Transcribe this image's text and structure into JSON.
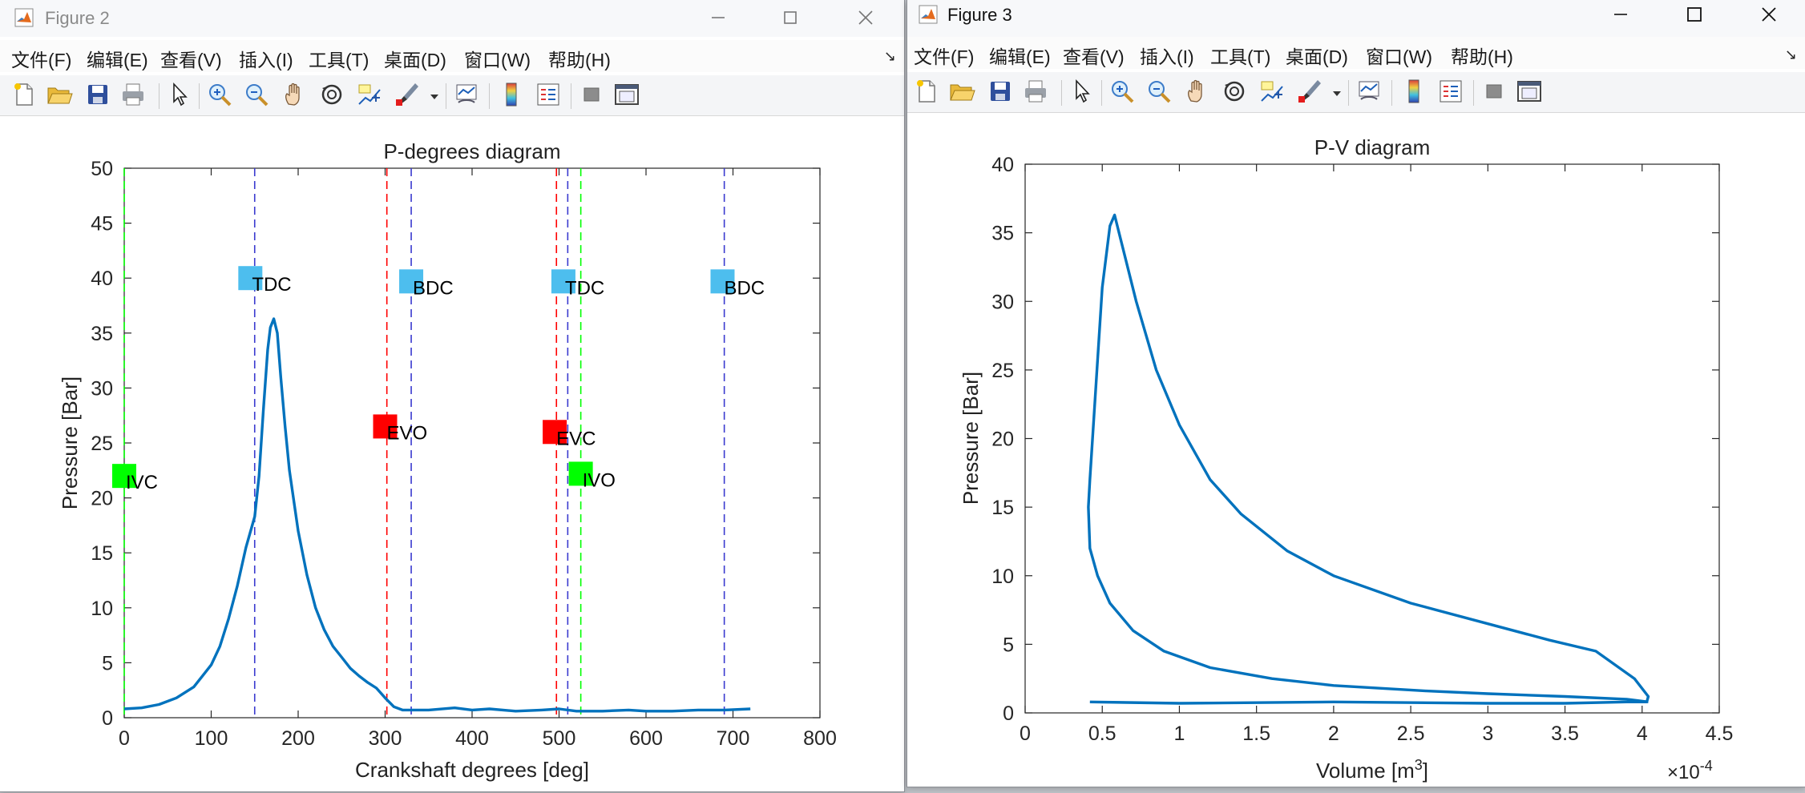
{
  "menu_labels": [
    "文件(F)",
    "编辑(E)",
    "查看(V)",
    "插入(I)",
    "工具(T)",
    "桌面(D)",
    "窗口(W)",
    "帮助(H)"
  ],
  "toolbar_icons": [
    "new-figure-icon",
    "open-file-icon",
    "save-icon",
    "print-icon",
    "pointer-icon",
    "zoom-in-icon",
    "zoom-out-icon",
    "pan-hand-icon",
    "rotate-3d-icon",
    "data-cursor-icon",
    "brush-icon",
    "link-plot-icon",
    "colorbar-icon",
    "legend-icon",
    "hide-plot-tools-icon",
    "show-plot-tools-icon"
  ],
  "windows": {
    "fig2": {
      "title": "Figure 2",
      "controls": [
        "—",
        "☐",
        "✕"
      ]
    },
    "fig3": {
      "title": "Figure 3",
      "controls": [
        "—",
        "☐",
        "✕"
      ]
    }
  },
  "colors": {
    "line": "#0072bd",
    "blue_marker": "#4dbeee",
    "red_marker": "#ff0000",
    "green_marker": "#00ff00"
  },
  "chart_data": [
    {
      "type": "line",
      "title": "P-degrees diagram",
      "xlabel": "Crankshaft degrees [deg]",
      "ylabel": "Pressure [Bar]",
      "xlim": [
        0,
        800
      ],
      "ylim": [
        0,
        50
      ],
      "xticks": [
        0,
        100,
        200,
        300,
        400,
        500,
        600,
        700,
        800
      ],
      "yticks": [
        0,
        5,
        10,
        15,
        20,
        25,
        30,
        35,
        40,
        45,
        50
      ],
      "series": [
        {
          "x": [
            0,
            20,
            40,
            60,
            80,
            100,
            110,
            120,
            130,
            140,
            150,
            155,
            160,
            165,
            168,
            172,
            176,
            180,
            185,
            190,
            200,
            210,
            220,
            230,
            240,
            250,
            260,
            270,
            280,
            290,
            300,
            310,
            320,
            330,
            350,
            380,
            400,
            420,
            450,
            480,
            500,
            520,
            550,
            580,
            600,
            630,
            660,
            690,
            720
          ],
          "y": [
            0.8,
            0.9,
            1.2,
            1.8,
            2.8,
            4.8,
            6.5,
            9.0,
            12.0,
            15.5,
            18.3,
            22.0,
            28.0,
            33.5,
            35.5,
            36.3,
            35.0,
            31.0,
            26.5,
            22.5,
            17.0,
            13.0,
            10.0,
            8.0,
            6.5,
            5.5,
            4.5,
            3.8,
            3.2,
            2.7,
            1.8,
            1.0,
            0.7,
            0.7,
            0.7,
            0.9,
            0.7,
            0.8,
            0.6,
            0.7,
            0.8,
            0.6,
            0.6,
            0.7,
            0.6,
            0.6,
            0.7,
            0.7,
            0.8
          ]
        }
      ],
      "vlines": [
        {
          "x": 0,
          "color": "#00ff00"
        },
        {
          "x": 150,
          "color": "#3a3acf"
        },
        {
          "x": 302,
          "color": "#ff0000"
        },
        {
          "x": 330,
          "color": "#3a3acf"
        },
        {
          "x": 497,
          "color": "#ff0000"
        },
        {
          "x": 510,
          "color": "#3a3acf"
        },
        {
          "x": 525,
          "color": "#00ff00"
        },
        {
          "x": 690,
          "color": "#3a3acf"
        }
      ],
      "markers": [
        {
          "x": 0,
          "y": 22,
          "color": "#00ff00",
          "label": "IVC"
        },
        {
          "x": 145,
          "y": 40,
          "color": "#4dbeee",
          "label": "TDC"
        },
        {
          "x": 300,
          "y": 26.5,
          "color": "#ff0000",
          "label": "EVO"
        },
        {
          "x": 330,
          "y": 39.7,
          "color": "#4dbeee",
          "label": "BDC"
        },
        {
          "x": 495,
          "y": 26,
          "color": "#ff0000",
          "label": "EVC"
        },
        {
          "x": 505,
          "y": 39.7,
          "color": "#4dbeee",
          "label": "TDC"
        },
        {
          "x": 525,
          "y": 22.2,
          "color": "#00ff00",
          "label": "IVO"
        },
        {
          "x": 688,
          "y": 39.7,
          "color": "#4dbeee",
          "label": "BDC"
        }
      ]
    },
    {
      "type": "line",
      "title": "P-V diagram",
      "xlabel": "Volume [m",
      "xlabel_sup": "3",
      "xlabel_end": "]",
      "ylabel": "Pressure [Bar]",
      "x_exponent_base": "×10",
      "x_exponent": "-4",
      "xlim": [
        0,
        4.5
      ],
      "ylim": [
        0,
        40
      ],
      "xticks": [
        0,
        0.5,
        1,
        1.5,
        2,
        2.5,
        3,
        3.5,
        4,
        4.5
      ],
      "yticks": [
        0,
        5,
        10,
        15,
        20,
        25,
        30,
        35,
        40
      ],
      "series": [
        {
          "x": [
            0.42,
            1.0,
            2.0,
            3.0,
            3.5,
            3.9,
            4.03,
            4.04,
            3.95,
            3.7,
            3.4,
            3.0,
            2.5,
            2.0,
            1.7,
            1.4,
            1.2,
            1.0,
            0.85,
            0.72,
            0.62,
            0.58,
            0.55,
            0.5,
            0.46,
            0.42,
            0.41,
            0.42,
            0.47,
            0.55,
            0.7,
            0.9,
            1.2,
            1.6,
            2.0,
            2.6,
            3.0,
            3.5,
            3.9,
            4.04
          ],
          "y": [
            0.8,
            0.7,
            0.8,
            0.7,
            0.7,
            0.8,
            0.8,
            1.2,
            2.5,
            4.5,
            5.3,
            6.5,
            8.0,
            10.0,
            11.8,
            14.5,
            17.0,
            21.0,
            25.0,
            30.0,
            34.5,
            36.3,
            35.5,
            31.0,
            24.0,
            17.0,
            15.0,
            12.0,
            10.0,
            8.0,
            6.0,
            4.5,
            3.3,
            2.5,
            2.0,
            1.6,
            1.4,
            1.2,
            1.0,
            0.8
          ]
        }
      ]
    }
  ]
}
